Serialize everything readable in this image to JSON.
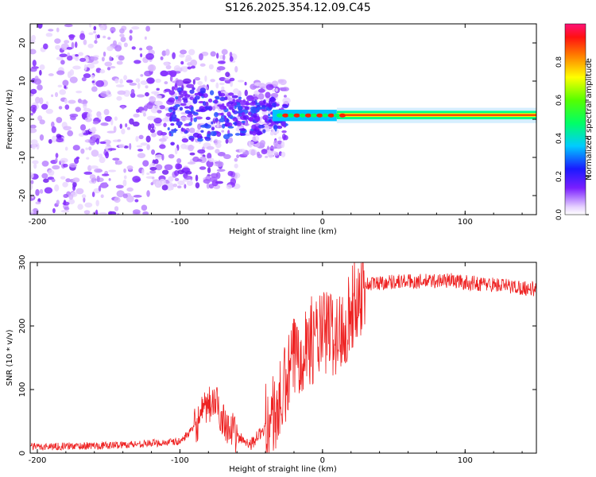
{
  "title": "S126.2025.354.12.09.C45",
  "colors": {
    "snr_line": "#ee2222",
    "axis": "#000000",
    "background": "#ffffff"
  },
  "chart_data": [
    {
      "type": "heatmap",
      "xlabel": "Height of straight line (km)",
      "ylabel": "Frequency (Hz)",
      "xlim": [
        -205,
        150
      ],
      "ylim": [
        -25,
        25
      ],
      "xticks": [
        -200,
        -100,
        0,
        100
      ],
      "yticks": [
        -20,
        -10,
        0,
        10,
        20
      ],
      "description_points": {
        "noise_region_x": [
          -205,
          -30
        ],
        "signal_center_freq_hz": 1,
        "signal_start_x": -30
      },
      "colorbar": {
        "label": "Normalized spectral amplitude",
        "range": [
          0,
          1
        ],
        "ticks": [
          0.0,
          0.2,
          0.4,
          0.6,
          0.8
        ],
        "tick_labels": [
          "0.0",
          "0.2",
          "0.4",
          "0.6",
          "0.8"
        ]
      }
    },
    {
      "type": "line",
      "xlabel": "Height of straight line (km)",
      "ylabel": "SNR (10 * v/v)",
      "xlim": [
        -205,
        150
      ],
      "ylim": [
        0,
        300
      ],
      "xticks": [
        -200,
        -100,
        0,
        100
      ],
      "yticks": [
        0,
        100,
        200,
        300
      ],
      "series": [
        {
          "name": "SNR",
          "x": [
            -205,
            -150,
            -100,
            -90,
            -80,
            -75,
            -70,
            -60,
            -50,
            -40,
            -30,
            -25,
            -20,
            -15,
            -10,
            -5,
            0,
            5,
            10,
            15,
            20,
            25,
            30,
            40,
            50,
            70,
            90,
            100,
            120,
            150
          ],
          "values": [
            10,
            12,
            18,
            40,
            75,
            80,
            55,
            25,
            15,
            40,
            75,
            110,
            150,
            165,
            175,
            180,
            185,
            195,
            180,
            200,
            225,
            245,
            265,
            268,
            270,
            270,
            272,
            268,
            265,
            258
          ]
        }
      ]
    }
  ]
}
